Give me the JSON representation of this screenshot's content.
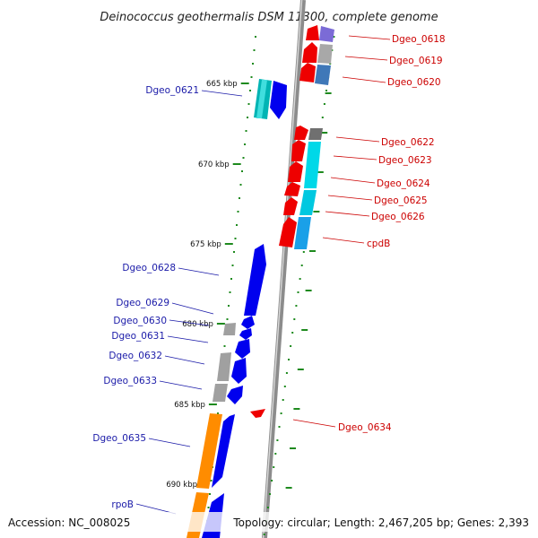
{
  "title": "Deinococcus geothermalis DSM 11300, complete genome",
  "footer": {
    "accession": "Accession: NC_008025",
    "summary": "Topology: circular; Length: 2,467,205 bp; Genes: 2,393"
  },
  "colors": {
    "forward_strand": "#0000ee",
    "reverse_strand": "#ee0000",
    "backbone": "#8c8c8c",
    "tick": "#1e8a1e",
    "forward_label": "#1a1aa8",
    "reverse_label": "#cc0000"
  },
  "ticks": [
    {
      "label": "665 kbp"
    },
    {
      "label": "670 kbp"
    },
    {
      "label": "675 kbp"
    },
    {
      "label": "680 kbp"
    },
    {
      "label": "685 kbp"
    },
    {
      "label": "690 kbp"
    }
  ],
  "reverse_genes": [
    {
      "label": "Dgeo_0618"
    },
    {
      "label": "Dgeo_0619"
    },
    {
      "label": "Dgeo_0620"
    },
    {
      "label": "Dgeo_0622"
    },
    {
      "label": "Dgeo_0623"
    },
    {
      "label": "Dgeo_0624"
    },
    {
      "label": "Dgeo_0625"
    },
    {
      "label": "Dgeo_0626"
    },
    {
      "label": "cpdB"
    },
    {
      "label": "Dgeo_0634"
    }
  ],
  "forward_genes": [
    {
      "label": "Dgeo_0621"
    },
    {
      "label": "Dgeo_0628"
    },
    {
      "label": "Dgeo_0629"
    },
    {
      "label": "Dgeo_0630"
    },
    {
      "label": "Dgeo_0631"
    },
    {
      "label": "Dgeo_0632"
    },
    {
      "label": "Dgeo_0633"
    },
    {
      "label": "Dgeo_0635"
    },
    {
      "label": "rpoB"
    }
  ]
}
